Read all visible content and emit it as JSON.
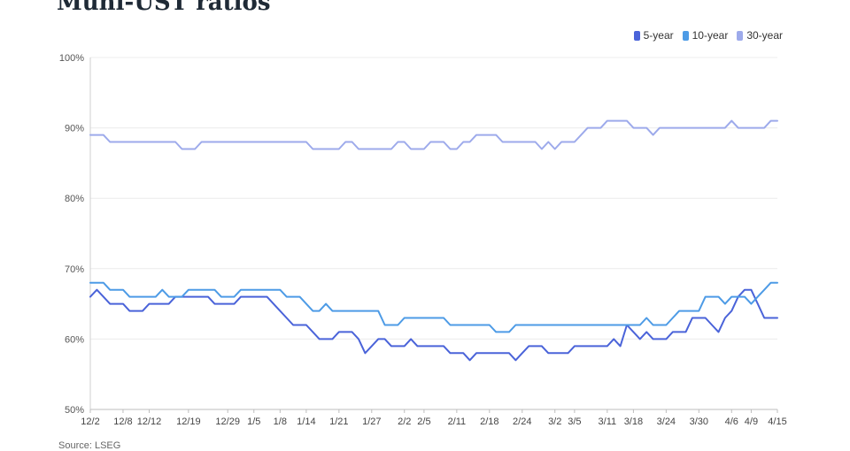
{
  "chart_data": {
    "type": "line",
    "title": "Muni-UST ratios",
    "xlabel": "",
    "ylabel": "",
    "ylim": [
      50,
      100
    ],
    "ytick_values": [
      50,
      60,
      70,
      80,
      90,
      100
    ],
    "ytick_labels": [
      "50%",
      "60%",
      "70%",
      "80%",
      "90%",
      "100%"
    ],
    "grid": true,
    "legend_position": "top-right",
    "x_tick_labels": [
      "12/2",
      "12/8",
      "12/12",
      "12/19",
      "12/29",
      "1/5",
      "1/8",
      "1/14",
      "1/21",
      "1/27",
      "2/2",
      "2/5",
      "2/11",
      "2/18",
      "2/24",
      "3/2",
      "3/5",
      "3/11",
      "3/18",
      "3/24",
      "3/30",
      "4/6",
      "4/9",
      "4/15"
    ],
    "x_tick_index": [
      0,
      5,
      9,
      15,
      21,
      25,
      29,
      33,
      38,
      43,
      48,
      51,
      56,
      61,
      66,
      71,
      74,
      79,
      83,
      88,
      93,
      98,
      101,
      105
    ],
    "n_points": 106,
    "series": [
      {
        "name": "5-year",
        "color": "#4a63d9",
        "values": [
          66,
          67,
          66,
          65,
          65,
          65,
          64,
          64,
          64,
          65,
          65,
          65,
          65,
          66,
          66,
          66,
          66,
          66,
          66,
          65,
          65,
          65,
          65,
          66,
          66,
          66,
          66,
          66,
          65,
          64,
          63,
          62,
          62,
          62,
          61,
          60,
          60,
          60,
          61,
          61,
          61,
          60,
          58,
          59,
          60,
          60,
          59,
          59,
          59,
          60,
          59,
          59,
          59,
          59,
          59,
          58,
          58,
          58,
          57,
          58,
          58,
          58,
          58,
          58,
          58,
          57,
          58,
          59,
          59,
          59,
          58,
          58,
          58,
          58,
          59,
          59,
          59,
          59,
          59,
          59,
          60,
          59,
          62,
          61,
          60,
          61,
          60,
          60,
          60,
          61,
          61,
          61,
          63,
          63,
          63,
          62,
          61,
          63,
          64,
          66,
          67,
          67,
          65,
          63,
          63,
          63
        ]
      },
      {
        "name": "10-year",
        "color": "#4d9be6",
        "values": [
          68,
          68,
          68,
          67,
          67,
          67,
          66,
          66,
          66,
          66,
          66,
          67,
          66,
          66,
          66,
          67,
          67,
          67,
          67,
          67,
          66,
          66,
          66,
          67,
          67,
          67,
          67,
          67,
          67,
          67,
          66,
          66,
          66,
          65,
          64,
          64,
          65,
          64,
          64,
          64,
          64,
          64,
          64,
          64,
          64,
          62,
          62,
          62,
          63,
          63,
          63,
          63,
          63,
          63,
          63,
          62,
          62,
          62,
          62,
          62,
          62,
          62,
          61,
          61,
          61,
          62,
          62,
          62,
          62,
          62,
          62,
          62,
          62,
          62,
          62,
          62,
          62,
          62,
          62,
          62,
          62,
          62,
          62,
          62,
          62,
          63,
          62,
          62,
          62,
          63,
          64,
          64,
          64,
          64,
          66,
          66,
          66,
          65,
          66,
          66,
          66,
          65,
          66,
          67,
          68,
          68
        ]
      },
      {
        "name": "30-year",
        "color": "#9daaeb",
        "values": [
          89,
          89,
          89,
          88,
          88,
          88,
          88,
          88,
          88,
          88,
          88,
          88,
          88,
          88,
          87,
          87,
          87,
          88,
          88,
          88,
          88,
          88,
          88,
          88,
          88,
          88,
          88,
          88,
          88,
          88,
          88,
          88,
          88,
          88,
          87,
          87,
          87,
          87,
          87,
          88,
          88,
          87,
          87,
          87,
          87,
          87,
          87,
          88,
          88,
          87,
          87,
          87,
          88,
          88,
          88,
          87,
          87,
          88,
          88,
          89,
          89,
          89,
          89,
          88,
          88,
          88,
          88,
          88,
          88,
          87,
          88,
          87,
          88,
          88,
          88,
          89,
          90,
          90,
          90,
          91,
          91,
          91,
          91,
          90,
          90,
          90,
          89,
          90,
          90,
          90,
          90,
          90,
          90,
          90,
          90,
          90,
          90,
          90,
          91,
          90,
          90,
          90,
          90,
          90,
          91,
          91
        ]
      }
    ]
  },
  "source_text": "Source: LSEG"
}
